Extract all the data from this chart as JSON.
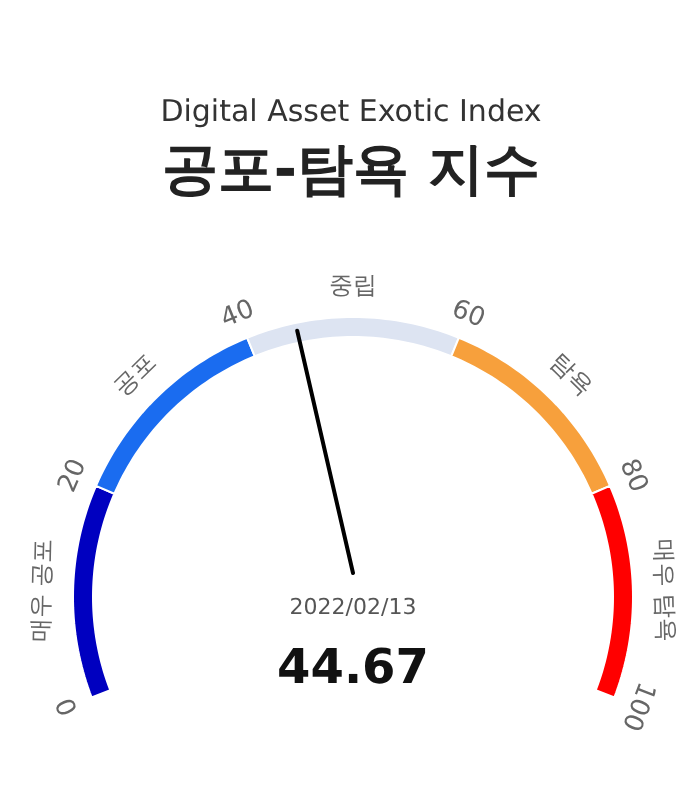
{
  "chart_data": {
    "type": "donut",
    "title": "Digital Asset Exotic Index",
    "subtitle": "공포-탐욕 지수",
    "categories": [
      "매우 공포",
      "공포",
      "중립",
      "탐욕",
      "매우 탐욕"
    ],
    "values": [
      20,
      20,
      20,
      20,
      20
    ],
    "colors": [
      "#0000c0",
      "#1a6cf0",
      "#dde4f2",
      "#f7a03c",
      "#ff0000"
    ],
    "needle": "중립",
    "annotations": [
      "0",
      "20",
      "40",
      "60",
      "80",
      "100",
      "2022/02/13",
      "44.67"
    ]
  }
}
